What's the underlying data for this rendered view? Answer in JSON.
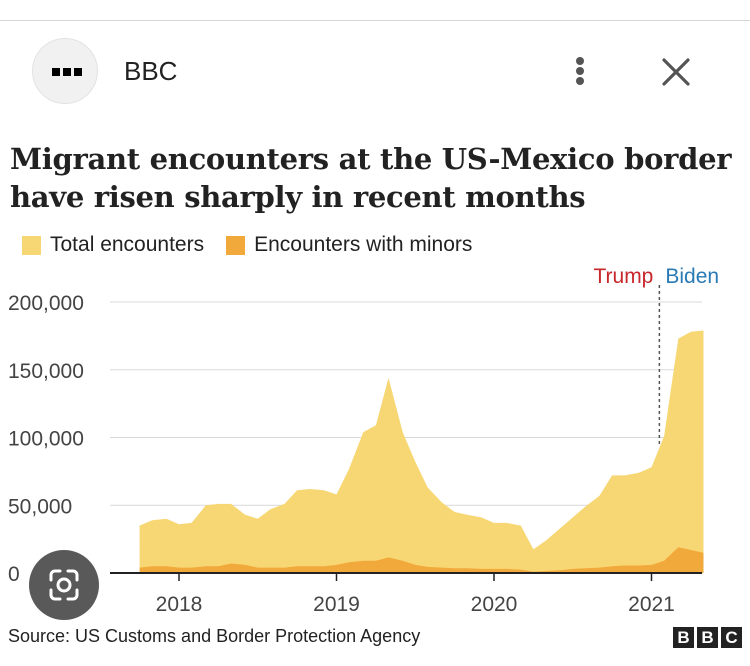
{
  "header": {
    "source_name": "BBC",
    "avatar_icon": "bbc-logo-icon",
    "more_icon": "more-vertical-icon",
    "close_icon": "close-icon"
  },
  "colors": {
    "total": "#f7d774",
    "minors": "#f2a93b",
    "trump": "#c8272b",
    "biden": "#2a7ab5"
  },
  "chart_data": {
    "type": "area",
    "title": "Migrant encounters at the US-Mexico border have risen sharply in recent months",
    "legend": [
      "Total encounters",
      "Encounters with minors"
    ],
    "legend_position": "top-left",
    "grid": true,
    "ylim": [
      0,
      200000
    ],
    "y_ticks": [
      0,
      50000,
      100000,
      150000,
      200000
    ],
    "y_tick_labels": [
      "0",
      "50,000",
      "100,000",
      "150,000",
      "200,000"
    ],
    "x_tick_labels": [
      "2018",
      "2019",
      "2020",
      "2021"
    ],
    "x_tick_positions": [
      2018.0,
      2019.0,
      2020.0,
      2021.0
    ],
    "annotations": [
      {
        "text_left": "Trump",
        "text_right": "Biden",
        "x": 2021.05
      }
    ],
    "series": [
      {
        "name": "Total encounters",
        "x": [
          2017.75,
          2017.83,
          2017.92,
          2018.0,
          2018.08,
          2018.17,
          2018.25,
          2018.33,
          2018.42,
          2018.5,
          2018.58,
          2018.67,
          2018.75,
          2018.83,
          2018.92,
          2019.0,
          2019.08,
          2019.17,
          2019.25,
          2019.33,
          2019.42,
          2019.5,
          2019.58,
          2019.67,
          2019.75,
          2019.83,
          2019.92,
          2020.0,
          2020.08,
          2020.17,
          2020.25,
          2020.33,
          2020.42,
          2020.5,
          2020.58,
          2020.67,
          2020.75,
          2020.83,
          2020.92,
          2021.0,
          2021.08,
          2021.17,
          2021.25,
          2021.33
        ],
        "values": [
          35000,
          39000,
          40000,
          36000,
          37000,
          50000,
          51000,
          51000,
          43000,
          40000,
          47000,
          51000,
          61000,
          62000,
          61000,
          58000,
          77000,
          104000,
          109000,
          144000,
          104000,
          82000,
          63000,
          52000,
          45000,
          43000,
          41000,
          37000,
          37000,
          35000,
          17500,
          24000,
          33000,
          41000,
          49000,
          57000,
          72000,
          72000,
          74000,
          78000,
          101000,
          173000,
          178000,
          179000
        ]
      },
      {
        "name": "Encounters with minors",
        "x": [
          2017.75,
          2017.83,
          2017.92,
          2018.0,
          2018.08,
          2018.17,
          2018.25,
          2018.33,
          2018.42,
          2018.5,
          2018.58,
          2018.67,
          2018.75,
          2018.83,
          2018.92,
          2019.0,
          2019.08,
          2019.17,
          2019.25,
          2019.33,
          2019.42,
          2019.5,
          2019.58,
          2019.67,
          2019.75,
          2019.83,
          2019.92,
          2020.0,
          2020.08,
          2020.17,
          2020.25,
          2020.33,
          2020.42,
          2020.5,
          2020.58,
          2020.67,
          2020.75,
          2020.83,
          2020.92,
          2021.0,
          2021.08,
          2021.17,
          2021.25,
          2021.33
        ],
        "values": [
          4000,
          5000,
          5000,
          4000,
          4000,
          5000,
          5000,
          7000,
          6000,
          4000,
          4000,
          4000,
          5000,
          5000,
          5000,
          6000,
          8000,
          9000,
          9000,
          11500,
          9000,
          6000,
          4500,
          4000,
          3500,
          3500,
          3000,
          3000,
          3000,
          2500,
          1000,
          1500,
          2000,
          3000,
          3500,
          4000,
          5000,
          5500,
          5500,
          6000,
          9000,
          19000,
          17000,
          15000
        ]
      }
    ]
  },
  "source_text": "Source: US Customs and Border Protection Agency",
  "bbc_logo": [
    "B",
    "B",
    "C"
  ],
  "lens_icon": "google-lens-icon"
}
